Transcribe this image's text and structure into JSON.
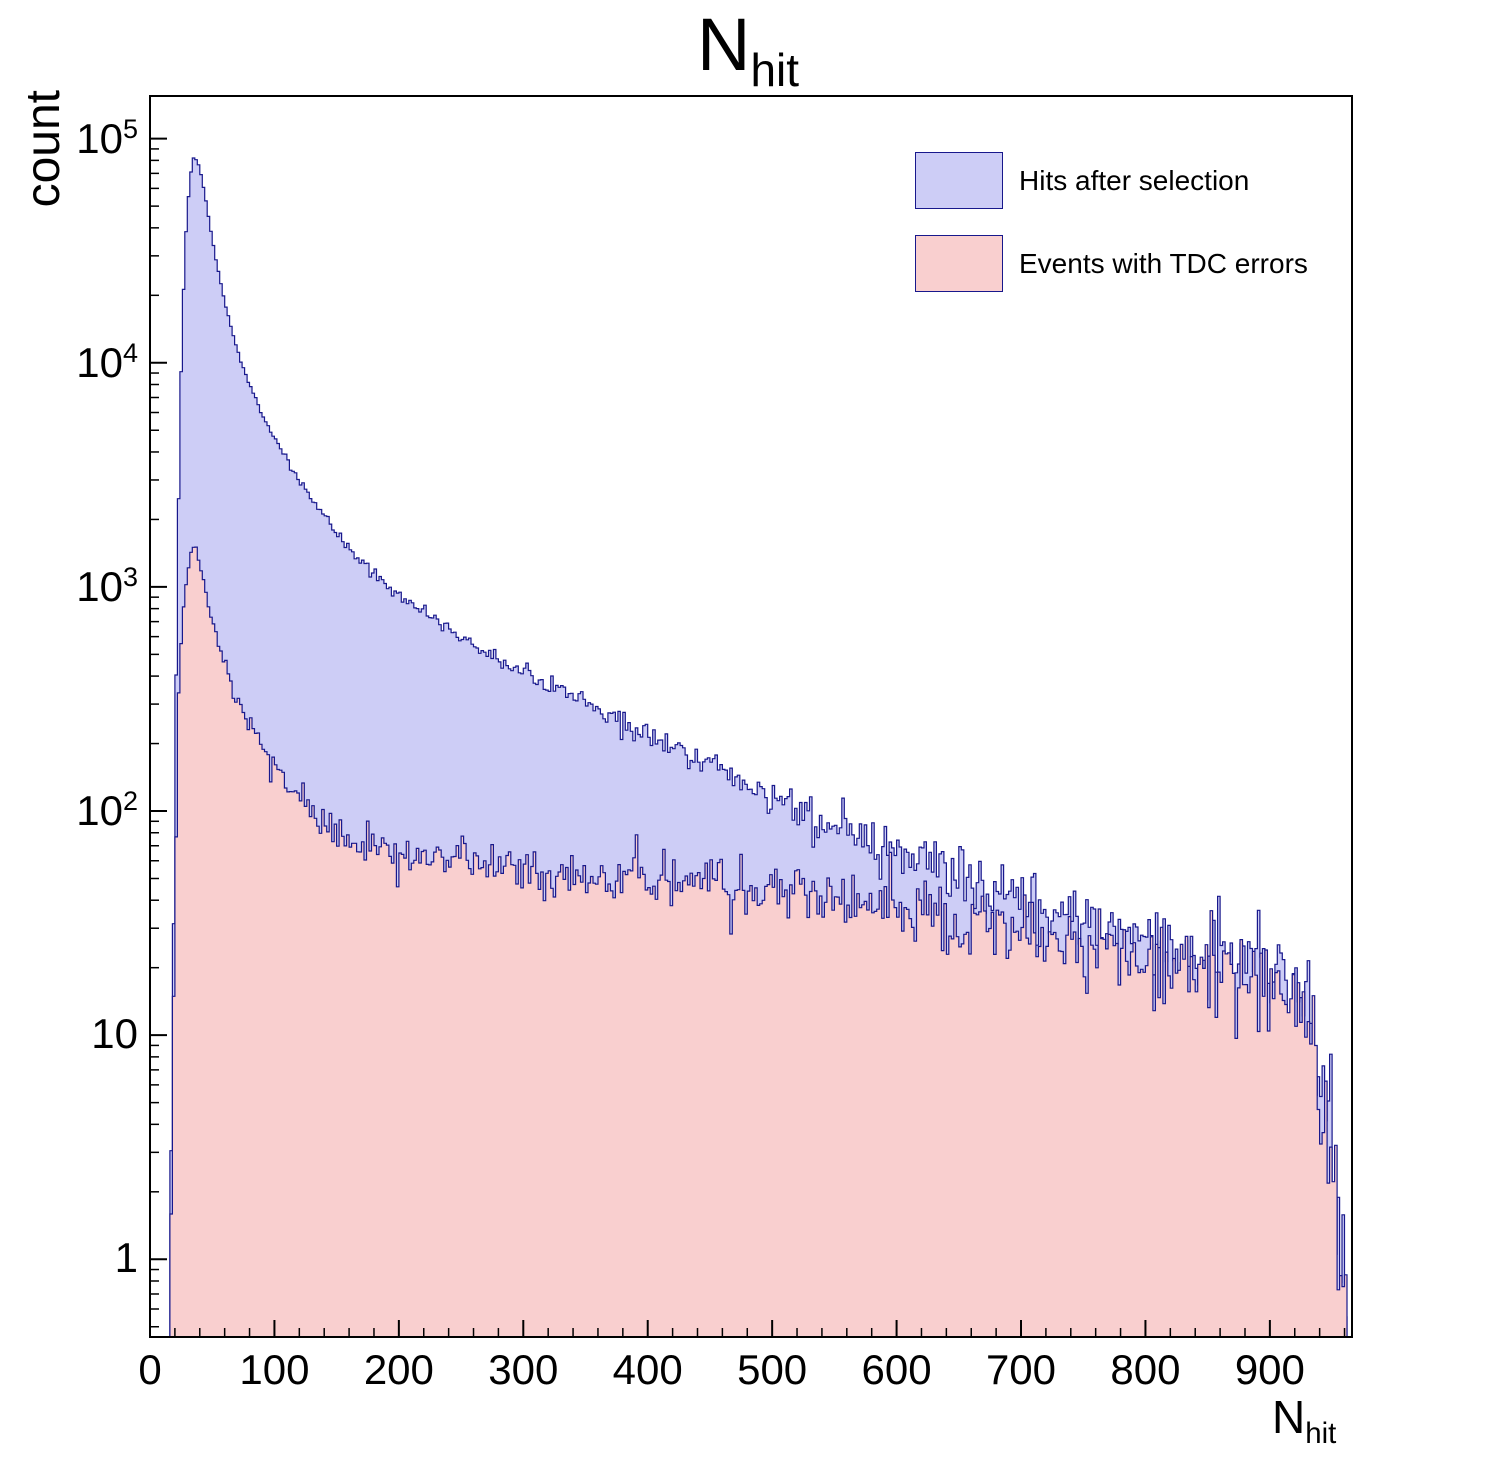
{
  "chart_data": {
    "type": "area",
    "title": "N_hit",
    "title_main": "N",
    "title_sub": "hit",
    "xlabel": "N_hit",
    "xlabel_main": "N",
    "xlabel_sub": "hit",
    "ylabel": "count",
    "y_scale": "log",
    "grid": false,
    "legend_position": "top-right-inside",
    "x_range": [
      0,
      966
    ],
    "y_range": [
      0.45,
      155000
    ],
    "x_major_ticks": [
      0,
      100,
      200,
      300,
      400,
      500,
      600,
      700,
      800,
      900
    ],
    "x_minor_step": 20,
    "y_tick_exponents": [
      0,
      1,
      2,
      3,
      4,
      5
    ],
    "bin_width": 2,
    "noise_seed": 20240601,
    "frame_color": "#000000",
    "series": [
      {
        "name": "Hits after selection",
        "fill": "#cdcdf6",
        "line": "#18188c",
        "noise": 1.0,
        "anchors": [
          [
            0,
            0.45
          ],
          [
            3,
            0.45
          ],
          [
            4,
            2.5
          ],
          [
            5,
            0.45
          ],
          [
            11,
            0.45
          ],
          [
            12,
            1.2
          ],
          [
            13,
            0.45
          ],
          [
            16,
            0.45
          ],
          [
            17,
            1.5
          ],
          [
            19,
            30
          ],
          [
            21,
            400
          ],
          [
            24,
            6000
          ],
          [
            28,
            32000
          ],
          [
            32,
            66000
          ],
          [
            35,
            82000
          ],
          [
            38,
            80000
          ],
          [
            42,
            66000
          ],
          [
            47,
            45000
          ],
          [
            52,
            31000
          ],
          [
            58,
            21000
          ],
          [
            65,
            14500
          ],
          [
            72,
            10500
          ],
          [
            80,
            8000
          ],
          [
            90,
            5900
          ],
          [
            100,
            4600
          ],
          [
            110,
            3700
          ],
          [
            120,
            3000
          ],
          [
            135,
            2300
          ],
          [
            150,
            1750
          ],
          [
            165,
            1400
          ],
          [
            180,
            1150
          ],
          [
            200,
            920
          ],
          [
            220,
            780
          ],
          [
            240,
            660
          ],
          [
            260,
            560
          ],
          [
            280,
            480
          ],
          [
            300,
            415
          ],
          [
            320,
            360
          ],
          [
            340,
            320
          ],
          [
            360,
            285
          ],
          [
            380,
            250
          ],
          [
            400,
            220
          ],
          [
            420,
            195
          ],
          [
            440,
            172
          ],
          [
            460,
            152
          ],
          [
            480,
            133
          ],
          [
            500,
            116
          ],
          [
            520,
            103
          ],
          [
            540,
            93
          ],
          [
            560,
            83
          ],
          [
            580,
            74
          ],
          [
            600,
            66
          ],
          [
            620,
            59
          ],
          [
            640,
            53
          ],
          [
            660,
            48
          ],
          [
            680,
            44
          ],
          [
            700,
            40
          ],
          [
            720,
            37
          ],
          [
            740,
            34
          ],
          [
            760,
            31
          ],
          [
            780,
            29
          ],
          [
            800,
            27
          ],
          [
            820,
            25
          ],
          [
            840,
            23
          ],
          [
            860,
            22
          ],
          [
            880,
            20
          ],
          [
            900,
            19
          ],
          [
            912,
            17
          ],
          [
            922,
            15
          ],
          [
            930,
            12
          ],
          [
            938,
            8
          ],
          [
            945,
            5
          ],
          [
            950,
            3
          ],
          [
            955,
            1.6
          ],
          [
            959,
            0.8
          ],
          [
            962,
            0.45
          ],
          [
            966,
            0.45
          ]
        ]
      },
      {
        "name": "Events with TDC errors",
        "fill": "#f9cfcf",
        "line": "#18188c",
        "noise": 1.0,
        "anchors": [
          [
            0,
            0.45
          ],
          [
            15,
            0.45
          ],
          [
            16,
            0.8
          ],
          [
            18,
            4
          ],
          [
            20,
            40
          ],
          [
            23,
            350
          ],
          [
            26,
            700
          ],
          [
            30,
            1150
          ],
          [
            34,
            1500
          ],
          [
            37,
            1480
          ],
          [
            41,
            1250
          ],
          [
            46,
            900
          ],
          [
            52,
            640
          ],
          [
            58,
            480
          ],
          [
            65,
            370
          ],
          [
            72,
            300
          ],
          [
            80,
            245
          ],
          [
            90,
            195
          ],
          [
            100,
            160
          ],
          [
            110,
            135
          ],
          [
            120,
            115
          ],
          [
            130,
            101
          ],
          [
            140,
            91
          ],
          [
            150,
            83
          ],
          [
            165,
            75
          ],
          [
            180,
            69
          ],
          [
            200,
            63
          ],
          [
            220,
            60
          ],
          [
            240,
            58
          ],
          [
            260,
            56
          ],
          [
            280,
            55
          ],
          [
            300,
            54
          ],
          [
            330,
            52
          ],
          [
            360,
            51
          ],
          [
            390,
            50
          ],
          [
            420,
            49
          ],
          [
            450,
            47
          ],
          [
            480,
            46
          ],
          [
            500,
            45
          ],
          [
            520,
            43
          ],
          [
            540,
            42
          ],
          [
            560,
            40
          ],
          [
            580,
            38
          ],
          [
            600,
            37
          ],
          [
            620,
            35
          ],
          [
            640,
            33
          ],
          [
            660,
            31
          ],
          [
            680,
            30
          ],
          [
            700,
            28
          ],
          [
            720,
            27
          ],
          [
            740,
            25
          ],
          [
            760,
            24
          ],
          [
            780,
            23
          ],
          [
            800,
            22
          ],
          [
            820,
            21
          ],
          [
            840,
            20
          ],
          [
            860,
            19
          ],
          [
            880,
            18
          ],
          [
            900,
            17
          ],
          [
            912,
            16
          ],
          [
            922,
            14
          ],
          [
            930,
            11
          ],
          [
            938,
            7
          ],
          [
            945,
            4
          ],
          [
            950,
            2.5
          ],
          [
            955,
            1.3
          ],
          [
            959,
            0.7
          ],
          [
            962,
            0.45
          ],
          [
            966,
            0.45
          ]
        ]
      }
    ]
  }
}
